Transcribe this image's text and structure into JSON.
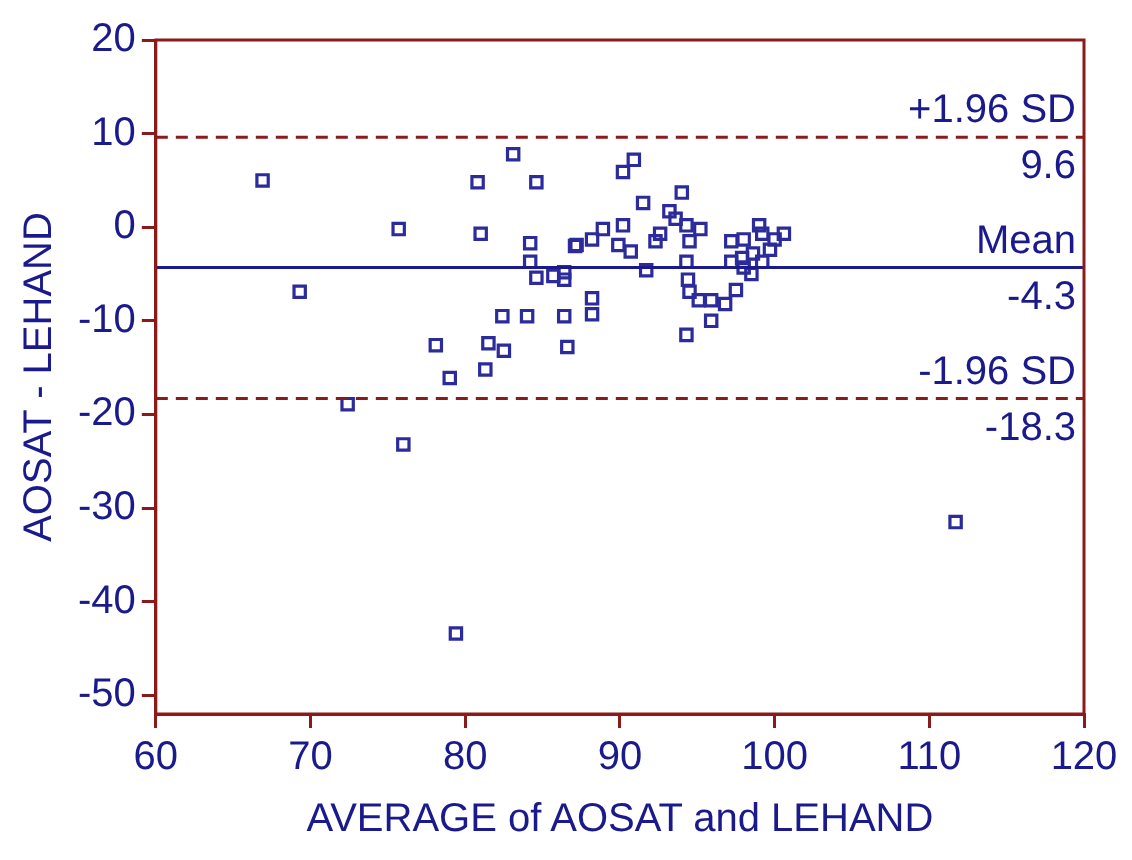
{
  "chart_data": {
    "type": "scatter",
    "xlabel": "AVERAGE of AOSAT and LEHAND",
    "ylabel": "AOSAT - LEHAND",
    "xlim": [
      60,
      120
    ],
    "xticks": [
      60,
      70,
      80,
      90,
      100,
      110,
      120
    ],
    "ylim": [
      -52,
      20
    ],
    "yticks": [
      -50,
      -40,
      -30,
      -20,
      -10,
      0,
      10,
      20
    ],
    "grid": false,
    "legend": false,
    "marker": "square",
    "series": [
      {
        "color": "#2b2b9b",
        "x": [
          66.9,
          69.3,
          72.4,
          75.7,
          76,
          78.1,
          79,
          79.4,
          80.8,
          81,
          81.5,
          81.3,
          82.4,
          82.5,
          83.1,
          84.6,
          84.2,
          84.2,
          84,
          84.6,
          85.7,
          86.4,
          86.4,
          86.6,
          87.1,
          88.2,
          88.2,
          90.2,
          90.9,
          91.5,
          94,
          93.2,
          93.6,
          94.3,
          95.2,
          94.5,
          92.6,
          92.3,
          90.2,
          88.9,
          88.2,
          87.2,
          89.9,
          90.7,
          91.7,
          94.3,
          94.4,
          94.5,
          95.1,
          95.9,
          95.9,
          94.3,
          96.8,
          97.5,
          97.2,
          97.2,
          98,
          99,
          99.2,
          100,
          100.6,
          99.7,
          99.2,
          98.5,
          98,
          97.9,
          98.6,
          86.4,
          111.7
        ],
        "values": [
          5,
          -6.9,
          -18.9,
          -0.2,
          -23.2,
          -12.6,
          -16.1,
          -43.4,
          4.8,
          -0.7,
          -12.4,
          -15.2,
          -9.5,
          -13.2,
          7.8,
          4.8,
          -1.7,
          -3.7,
          -9.5,
          -5.4,
          -5.2,
          -4.8,
          -9.5,
          -12.8,
          -2,
          -7.6,
          -9.3,
          5.9,
          7.2,
          2.6,
          3.7,
          1.7,
          0.9,
          0.2,
          -0.2,
          -1.5,
          -0.7,
          -1.5,
          0.2,
          -0.2,
          -1.3,
          -1.9,
          -1.9,
          -2.6,
          -4.6,
          -3.7,
          -5.6,
          -6.9,
          -7.8,
          -7.8,
          -10,
          -11.5,
          -8.2,
          -6.7,
          -3.7,
          -1.5,
          -1.3,
          0.2,
          -0.7,
          -1.3,
          -0.7,
          -2.4,
          -3.7,
          -5,
          -4.3,
          -3.3,
          -2.8,
          -5.6,
          -31.5
        ]
      }
    ],
    "ref_lines": [
      {
        "axis": "y",
        "value": 9.6,
        "label": "+1.96 SD",
        "color": "#8b1a1a",
        "line_style": "dashed"
      },
      {
        "axis": "y",
        "value": -4.3,
        "label": "Mean",
        "color": "#1a1a8c",
        "line_style": "solid"
      },
      {
        "axis": "y",
        "value": -18.3,
        "label": "-1.96 SD",
        "color": "#8b1a1a",
        "line_style": "dashed"
      }
    ],
    "annotations": [
      {
        "text": "9.6",
        "y": 9.6
      },
      {
        "text": "-4.3",
        "y": -4.3
      },
      {
        "text": "-18.3",
        "y": -18.3
      }
    ]
  }
}
